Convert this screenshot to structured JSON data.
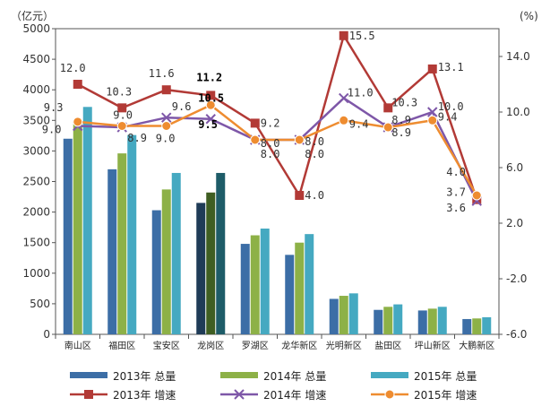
{
  "chart_data": {
    "type": "bar+line",
    "left_unit": "（亿元）",
    "right_unit": "(%)",
    "categories": [
      "南山区",
      "福田区",
      "宝安区",
      "龙岗区",
      "罗湖区",
      "龙华新区",
      "光明新区",
      "盐田区",
      "坪山新区",
      "大鹏新区"
    ],
    "left_axis": {
      "ylim": [
        0,
        5000
      ],
      "ticks": [
        "0",
        "500",
        "1000",
        "1500",
        "2000",
        "2500",
        "3000",
        "3500",
        "4000",
        "4500",
        "5000"
      ]
    },
    "right_axis": {
      "ylim": [
        -6,
        16
      ],
      "ticks": [
        "-6.0",
        "-2.0",
        "2.0",
        "6.0",
        "10.0",
        "14.0"
      ]
    },
    "bar_series": [
      {
        "name": "2013年 总量",
        "color": "#3C6EA6",
        "values": [
          3200,
          2700,
          2030,
          2150,
          1480,
          1300,
          580,
          400,
          390,
          250
        ]
      },
      {
        "name": "2014年 总量",
        "color": "#8DB147",
        "values": [
          3500,
          2960,
          2370,
          2320,
          1620,
          1500,
          630,
          450,
          420,
          260
        ]
      },
      {
        "name": "2015年 总量",
        "color": "#45A9C1",
        "values": [
          3720,
          3260,
          2640,
          2640,
          1730,
          1640,
          670,
          490,
          450,
          280
        ]
      }
    ],
    "highlight_category_index": 3,
    "highlight_colors": [
      "#1F3B57",
      "#3F5E22",
      "#1E5C68"
    ],
    "line_series": [
      {
        "name": "2013年 增速",
        "color": "#B23A36",
        "marker": "square",
        "values": [
          12.0,
          10.3,
          11.6,
          11.2,
          9.2,
          4.0,
          15.5,
          10.3,
          13.1,
          3.7
        ],
        "labels": [
          "12.0",
          "10.3",
          "11.6",
          "11.2",
          "9.2",
          "4.0",
          "15.5",
          "10.3",
          "13.1",
          "3.7"
        ]
      },
      {
        "name": "2014年 增速",
        "color": "#7E57A8",
        "marker": "x",
        "values": [
          9.0,
          8.9,
          9.6,
          9.5,
          8.0,
          8.0,
          11.0,
          8.9,
          10.0,
          3.6
        ],
        "labels": [
          "9.0",
          "8.9",
          "9.6",
          "9.5",
          "8.0",
          "8.0",
          "11.0",
          "8.9",
          "10.0",
          "3.6"
        ]
      },
      {
        "name": "2015年 增速",
        "color": "#EE8C30",
        "marker": "circle",
        "values": [
          9.3,
          9.0,
          9.0,
          10.5,
          8.0,
          8.0,
          9.4,
          8.9,
          9.4,
          4.0
        ],
        "labels": [
          "9.3",
          "9.0",
          "9.0",
          "10.5",
          "8.0",
          "8.0",
          "9.4",
          "8.9",
          "9.4",
          "4.0"
        ]
      }
    ],
    "bold_labels_category_index": 3
  }
}
